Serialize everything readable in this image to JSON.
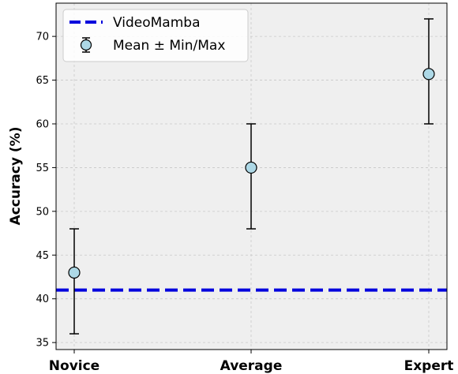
{
  "chart_data": {
    "type": "scatter",
    "categories": [
      "Novice",
      "Average",
      "Expert"
    ],
    "ylabel": "Accuracy (%)",
    "xlabel": "",
    "ylim": [
      34.2,
      73.8
    ],
    "yticks": [
      35,
      40,
      45,
      50,
      55,
      60,
      65,
      70
    ],
    "grid": true,
    "legend_position": "top-left",
    "series": [
      {
        "name": "Mean ± Min/Max",
        "values": [
          43,
          55,
          65.7
        ],
        "min": [
          36,
          48,
          60
        ],
        "max": [
          48,
          60,
          72
        ]
      }
    ],
    "reference_lines": [
      {
        "name": "VideoMamba",
        "value": 41,
        "style": "dashed"
      }
    ],
    "colors": {
      "marker_fill": "#add8e6",
      "marker_edge": "#000000",
      "errorbar": "#000000",
      "reference_line": "#0000dd",
      "plot_background": "#efefef",
      "grid": "#c8c8c8"
    }
  }
}
